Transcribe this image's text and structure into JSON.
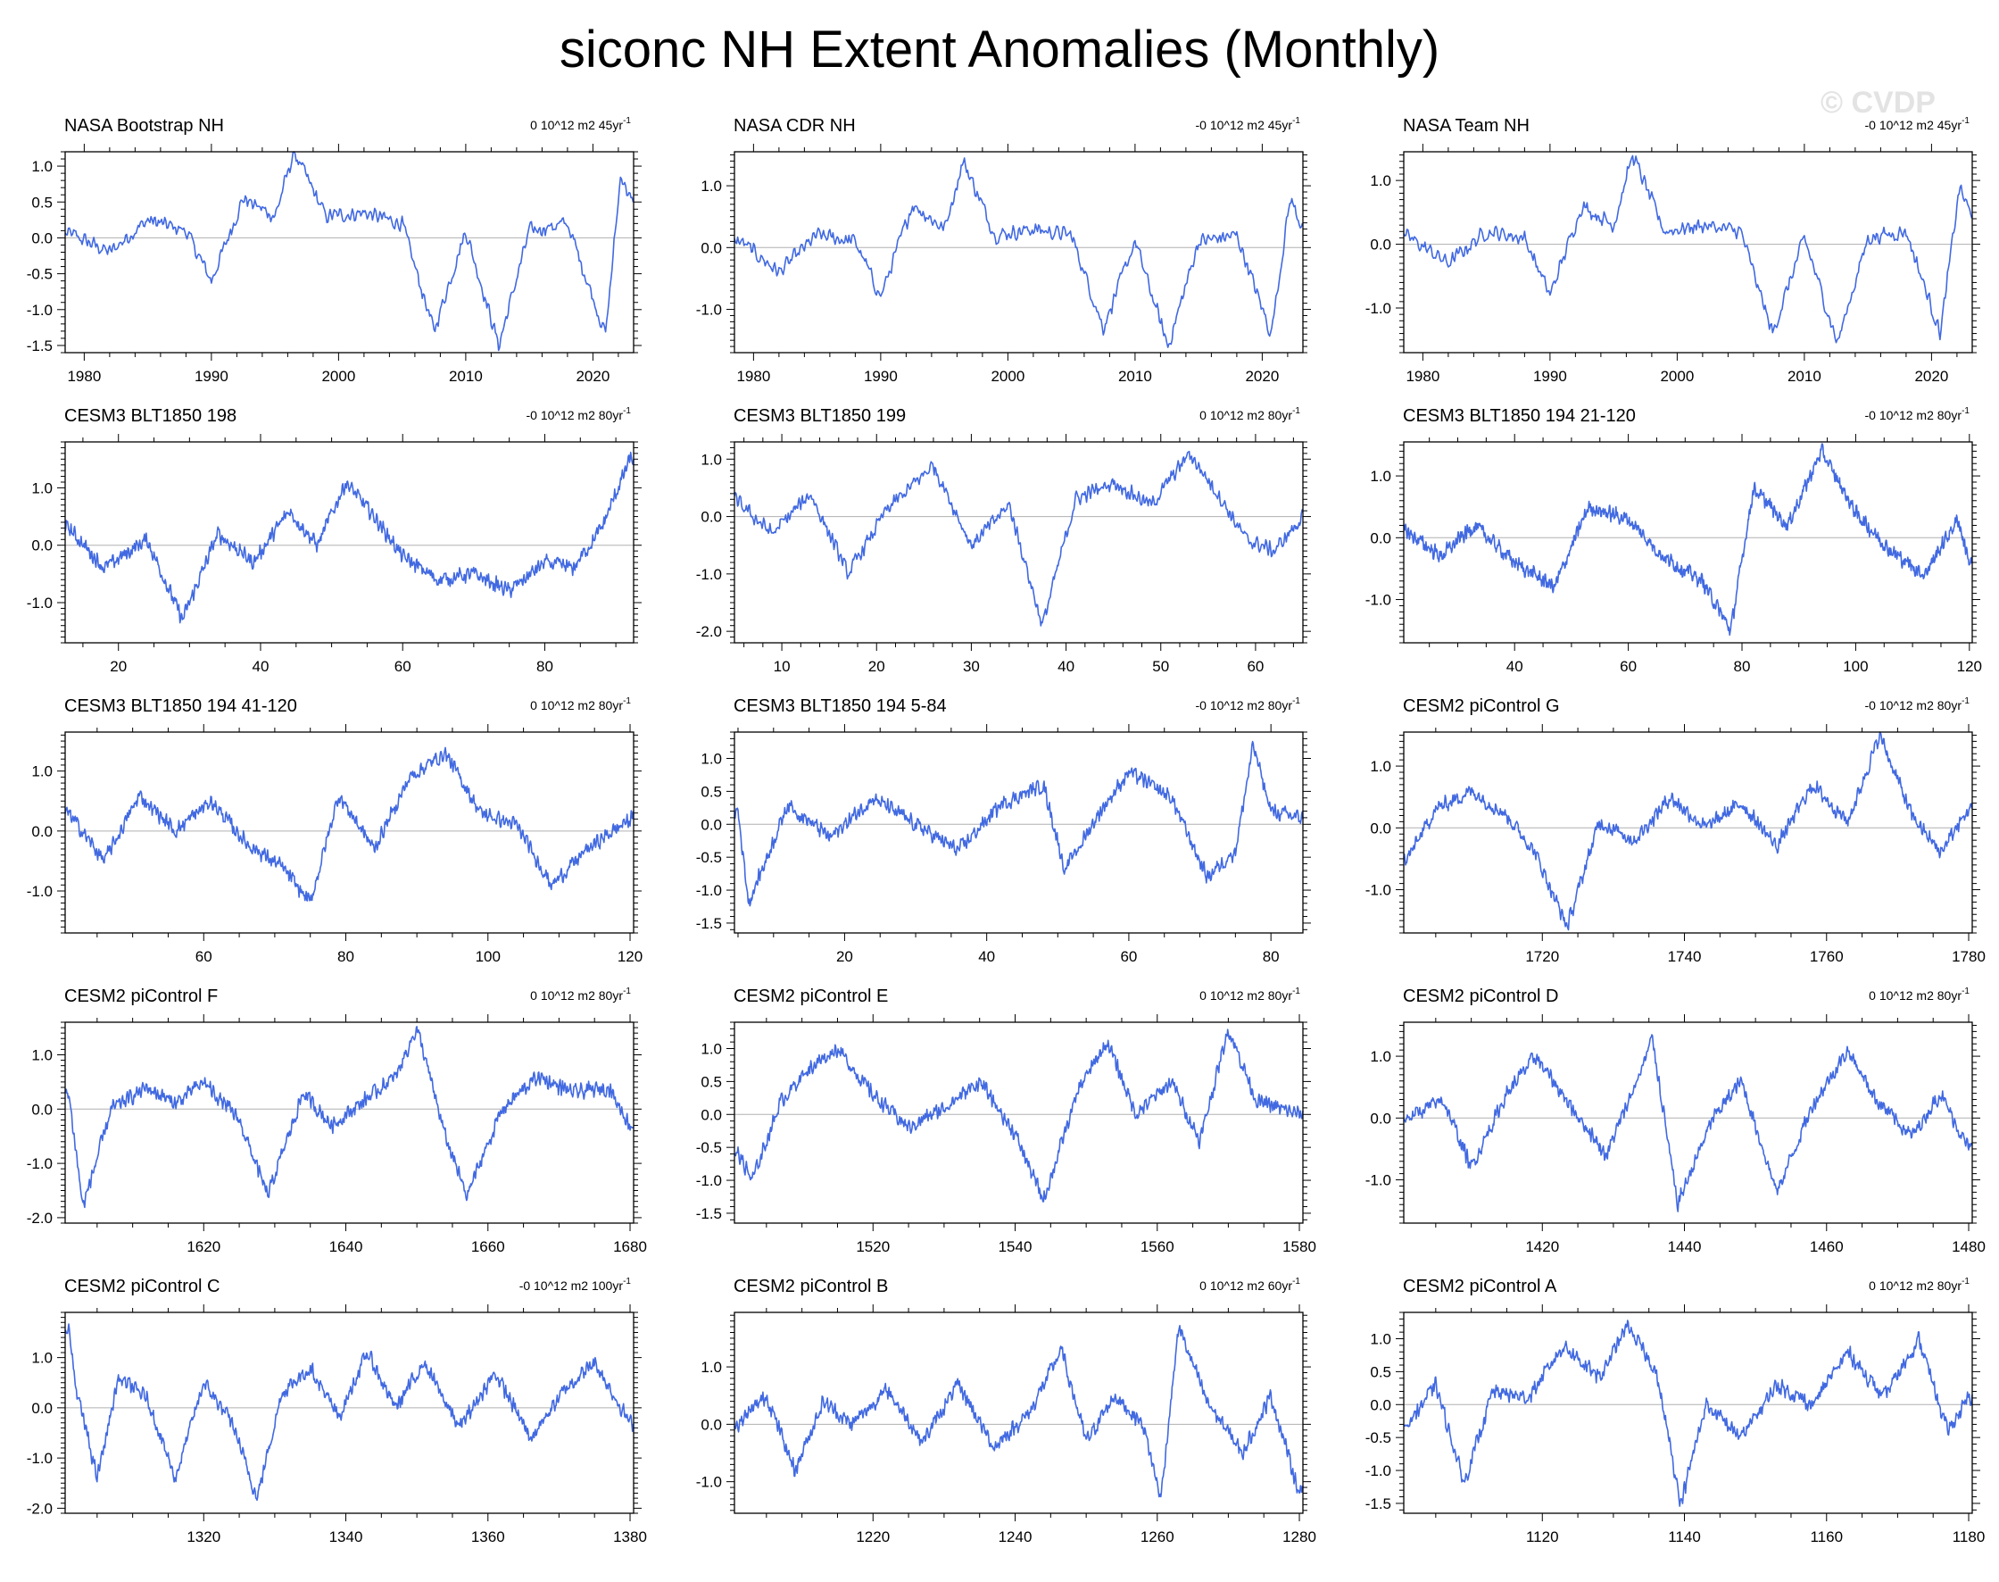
{
  "title": "siconc NH Extent Anomalies (Monthly)",
  "watermark": "© CVDP",
  "colors": {
    "line": "#4169e1",
    "zero": "#b0b0b0",
    "frame": "#000000"
  },
  "chart_data": [
    {
      "type": "line",
      "title": "NASA Bootstrap NH",
      "trend": "0 10^12 m2 45yr",
      "trend_sup": "-1",
      "xlim": [
        1978.5,
        2023.2
      ],
      "ylim": [
        -1.6,
        1.2
      ],
      "xticks": [
        1980,
        1990,
        2000,
        2010,
        2020
      ],
      "yticks": [
        -1.5,
        -1.0,
        -0.5,
        0.0,
        0.5,
        1.0
      ],
      "ytick_labels": [
        "-1.5",
        "-1.0",
        "-0.5",
        "0.0",
        "0.5",
        "1.0"
      ],
      "series": [
        {
          "x": [
            1979,
            1982,
            1985,
            1988,
            1990,
            1992.5,
            1995,
            1996.5,
            1999,
            2002,
            2005,
            2007.5,
            2010,
            2012.6,
            2015,
            2018,
            2021,
            2022.2,
            2023
          ],
          "y": [
            0.05,
            -0.2,
            0.25,
            0.1,
            -0.6,
            0.55,
            0.3,
            1.2,
            0.3,
            0.35,
            0.2,
            -1.3,
            0.1,
            -1.5,
            0.1,
            0.2,
            -1.35,
            0.9,
            0.5
          ]
        }
      ]
    },
    {
      "type": "line",
      "title": "NASA CDR NH",
      "trend": "-0 10^12 m2 45yr",
      "trend_sup": "-1",
      "xlim": [
        1978.5,
        2023.2
      ],
      "ylim": [
        -1.7,
        1.55
      ],
      "xticks": [
        1980,
        1990,
        2000,
        2010,
        2020
      ],
      "yticks": [
        -1.0,
        0.0,
        1.0
      ],
      "ytick_labels": [
        "-1.0",
        "0.0",
        "1.0"
      ],
      "series": [
        {
          "x": [
            1979,
            1982,
            1985,
            1988,
            1990,
            1992.5,
            1995,
            1996.5,
            1999,
            2002,
            2005,
            2007.5,
            2010,
            2012.6,
            2015,
            2018,
            2020.7,
            2022.2,
            2023
          ],
          "y": [
            0.1,
            -0.4,
            0.2,
            0.1,
            -0.8,
            0.7,
            0.3,
            1.4,
            0.2,
            0.3,
            0.2,
            -1.3,
            0.1,
            -1.6,
            0.1,
            0.2,
            -1.4,
            0.8,
            0.4
          ]
        }
      ]
    },
    {
      "type": "line",
      "title": "NASA Team NH",
      "trend": "-0 10^12 m2 45yr",
      "trend_sup": "-1",
      "xlim": [
        1978.5,
        2023.2
      ],
      "ylim": [
        -1.7,
        1.45
      ],
      "xticks": [
        1980,
        1990,
        2000,
        2010,
        2020
      ],
      "yticks": [
        -1.0,
        0.0,
        1.0
      ],
      "ytick_labels": [
        "-1.0",
        "0.0",
        "1.0"
      ],
      "series": [
        {
          "x": [
            1979,
            1982,
            1985,
            1988,
            1990,
            1992.5,
            1995,
            1996.5,
            1999,
            2002,
            2005,
            2007.5,
            2010,
            2012.6,
            2015,
            2018,
            2020.7,
            2022.2,
            2023
          ],
          "y": [
            0.1,
            -0.3,
            0.2,
            0.1,
            -0.8,
            0.6,
            0.3,
            1.4,
            0.2,
            0.3,
            0.2,
            -1.4,
            0.1,
            -1.55,
            0.1,
            0.2,
            -1.4,
            0.9,
            0.5
          ]
        }
      ]
    },
    {
      "type": "line",
      "title": "CESM3 BLT1850 198",
      "trend": "-0 10^12 m2 80yr",
      "trend_sup": "-1",
      "xlim": [
        12.5,
        92.5
      ],
      "ylim": [
        -1.7,
        1.8
      ],
      "xticks": [
        20,
        40,
        60,
        80
      ],
      "yticks": [
        -1.0,
        0.0,
        1.0
      ],
      "ytick_labels": [
        "-1.0",
        "0.0",
        "1.0"
      ],
      "series": [
        {
          "x": [
            13,
            18,
            24,
            29,
            34,
            39,
            44,
            48,
            52,
            56,
            60,
            65,
            70,
            75,
            80,
            84,
            88,
            92
          ],
          "y": [
            0.3,
            -0.4,
            0.1,
            -1.3,
            0.2,
            -0.3,
            0.6,
            0.0,
            1.1,
            0.5,
            -0.2,
            -0.6,
            -0.5,
            -0.8,
            -0.3,
            -0.4,
            0.3,
            1.5
          ]
        }
      ]
    },
    {
      "type": "line",
      "title": "CESM3 BLT1850 199",
      "trend": "0 10^12 m2 80yr",
      "trend_sup": "-1",
      "xlim": [
        5,
        65
      ],
      "ylim": [
        -2.2,
        1.3
      ],
      "xticks": [
        10,
        20,
        30,
        40,
        50,
        60
      ],
      "yticks": [
        -2.0,
        -1.0,
        0.0,
        1.0
      ],
      "ytick_labels": [
        "-2.0",
        "-1.0",
        "0.0",
        "1.0"
      ],
      "series": [
        {
          "x": [
            5,
            9,
            13,
            17,
            21,
            26,
            30,
            34,
            37.5,
            41,
            45,
            49,
            53,
            56,
            59,
            62,
            65
          ],
          "y": [
            0.3,
            -0.3,
            0.4,
            -1.0,
            0.1,
            0.9,
            -0.5,
            0.2,
            -1.9,
            0.3,
            0.6,
            0.2,
            1.1,
            0.4,
            -0.4,
            -0.6,
            0.0
          ]
        }
      ]
    },
    {
      "type": "line",
      "title": "CESM3 BLT1850 194 21-120",
      "trend": "-0 10^12 m2 80yr",
      "trend_sup": "-1",
      "xlim": [
        20.5,
        120.5
      ],
      "ylim": [
        -1.7,
        1.55
      ],
      "xticks": [
        40,
        60,
        80,
        100,
        120
      ],
      "yticks": [
        -1.0,
        0.0,
        1.0
      ],
      "ytick_labels": [
        "-1.0",
        "0.0",
        "1.0"
      ],
      "series": [
        {
          "x": [
            21,
            27,
            33,
            40,
            47,
            53,
            60,
            66,
            73,
            78,
            82,
            88,
            94,
            100,
            106,
            112,
            118,
            120
          ],
          "y": [
            0.1,
            -0.3,
            0.2,
            -0.4,
            -0.8,
            0.5,
            0.3,
            -0.3,
            -0.7,
            -1.5,
            0.8,
            0.2,
            1.4,
            0.4,
            -0.2,
            -0.6,
            0.3,
            -0.4
          ]
        }
      ]
    },
    {
      "type": "line",
      "title": "CESM3 BLT1850 194 41-120",
      "trend": "0 10^12 m2 80yr",
      "trend_sup": "-1",
      "xlim": [
        40.5,
        120.5
      ],
      "ylim": [
        -1.7,
        1.65
      ],
      "xticks": [
        60,
        80,
        100,
        120
      ],
      "yticks": [
        -1.0,
        0.0,
        1.0
      ],
      "ytick_labels": [
        "-1.0",
        "0.0",
        "1.0"
      ],
      "series": [
        {
          "x": [
            41,
            46,
            51,
            56,
            61,
            66,
            71,
            75,
            79,
            84,
            89,
            94,
            99,
            104,
            109,
            114,
            120
          ],
          "y": [
            0.3,
            -0.5,
            0.6,
            0.0,
            0.5,
            -0.2,
            -0.6,
            -1.2,
            0.6,
            -0.3,
            0.9,
            1.3,
            0.3,
            0.1,
            -0.9,
            -0.3,
            0.2
          ]
        }
      ]
    },
    {
      "type": "line",
      "title": "CESM3 BLT1850 194 5-84",
      "trend": "-0 10^12 m2 80yr",
      "trend_sup": "-1",
      "xlim": [
        4.5,
        84.5
      ],
      "ylim": [
        -1.65,
        1.4
      ],
      "xticks": [
        20,
        40,
        60,
        80
      ],
      "yticks": [
        -1.5,
        -1.0,
        -0.5,
        0.0,
        0.5,
        1.0
      ],
      "ytick_labels": [
        "-1.5",
        "-1.0",
        "-0.5",
        "0.0",
        "0.5",
        "1.0"
      ],
      "series": [
        {
          "x": [
            5,
            6.5,
            12,
            18,
            24,
            30,
            36,
            42,
            48,
            51,
            56,
            60,
            66,
            71,
            75,
            77.5,
            80,
            84
          ],
          "y": [
            0.2,
            -1.2,
            0.3,
            -0.2,
            0.4,
            0.0,
            -0.4,
            0.3,
            0.6,
            -0.7,
            0.2,
            0.8,
            0.4,
            -0.8,
            -0.4,
            1.2,
            0.2,
            0.1
          ]
        }
      ]
    },
    {
      "type": "line",
      "title": "CESM2 piControl G",
      "trend": "-0 10^12 m2 80yr",
      "trend_sup": "-1",
      "xlim": [
        1700.5,
        1780.5
      ],
      "ylim": [
        -1.7,
        1.55
      ],
      "xticks": [
        1720,
        1740,
        1760,
        1780
      ],
      "yticks": [
        -1.0,
        0.0,
        1.0
      ],
      "ytick_labels": [
        "-1.0",
        "0.0",
        "1.0"
      ],
      "series": [
        {
          "x": [
            1701,
            1705,
            1710,
            1715,
            1719,
            1723.5,
            1728,
            1733,
            1738,
            1743,
            1748,
            1753,
            1758,
            1763,
            1767.5,
            1772,
            1776,
            1780
          ],
          "y": [
            -0.5,
            0.3,
            0.6,
            0.2,
            -0.4,
            -1.6,
            0.1,
            -0.2,
            0.5,
            0.0,
            0.4,
            -0.3,
            0.7,
            0.1,
            1.5,
            0.2,
            -0.4,
            0.3
          ]
        }
      ]
    },
    {
      "type": "line",
      "title": "CESM2 piControl F",
      "trend": "0 10^12 m2 80yr",
      "trend_sup": "-1",
      "xlim": [
        1600.5,
        1680.5
      ],
      "ylim": [
        -2.1,
        1.6
      ],
      "xticks": [
        1620,
        1640,
        1660,
        1680
      ],
      "yticks": [
        -2.0,
        -1.0,
        0.0,
        1.0
      ],
      "ytick_labels": [
        "-2.0",
        "-1.0",
        "0.0",
        "1.0"
      ],
      "series": [
        {
          "x": [
            1601,
            1603,
            1607,
            1612,
            1616,
            1620,
            1625,
            1629,
            1634,
            1638,
            1643,
            1647,
            1650,
            1654,
            1657,
            1662,
            1667,
            1672,
            1677,
            1680
          ],
          "y": [
            0.3,
            -1.8,
            0.0,
            0.4,
            0.1,
            0.5,
            -0.2,
            -1.6,
            0.3,
            -0.3,
            0.2,
            0.6,
            1.5,
            -0.5,
            -1.6,
            0.0,
            0.6,
            0.3,
            0.4,
            -0.3
          ]
        }
      ]
    },
    {
      "type": "line",
      "title": "CESM2 piControl E",
      "trend": "0 10^12 m2 80yr",
      "trend_sup": "-1",
      "xlim": [
        1500.5,
        1580.5
      ],
      "ylim": [
        -1.65,
        1.4
      ],
      "xticks": [
        1520,
        1540,
        1560,
        1580
      ],
      "yticks": [
        -1.5,
        -1.0,
        -0.5,
        0.0,
        0.5,
        1.0
      ],
      "ytick_labels": [
        "-1.5",
        "-1.0",
        "-0.5",
        "0.0",
        "0.5",
        "1.0"
      ],
      "series": [
        {
          "x": [
            1501,
            1503,
            1507,
            1511,
            1515,
            1520,
            1525,
            1530,
            1535,
            1540,
            1544,
            1549,
            1553,
            1557,
            1562,
            1566,
            1570,
            1574,
            1580
          ],
          "y": [
            -0.6,
            -1.0,
            0.2,
            0.7,
            1.0,
            0.3,
            -0.2,
            0.1,
            0.5,
            -0.3,
            -1.3,
            0.4,
            1.1,
            0.0,
            0.5,
            -0.4,
            1.3,
            0.2,
            0.0
          ]
        }
      ]
    },
    {
      "type": "line",
      "title": "CESM2 piControl D",
      "trend": "0 10^12 m2 80yr",
      "trend_sup": "-1",
      "xlim": [
        1400.5,
        1480.5
      ],
      "ylim": [
        -1.7,
        1.55
      ],
      "xticks": [
        1420,
        1440,
        1460,
        1480
      ],
      "yticks": [
        -1.0,
        0.0,
        1.0
      ],
      "ytick_labels": [
        "-1.0",
        "0.0",
        "1.0"
      ],
      "series": [
        {
          "x": [
            1401,
            1406,
            1410,
            1415,
            1419,
            1424,
            1429,
            1434,
            1435.5,
            1439,
            1444,
            1448,
            1453,
            1458,
            1463,
            1467,
            1472,
            1476,
            1480
          ],
          "y": [
            0.0,
            0.3,
            -0.8,
            0.4,
            1.0,
            0.2,
            -0.6,
            0.8,
            1.3,
            -1.4,
            0.0,
            0.6,
            -1.2,
            0.2,
            1.1,
            0.3,
            -0.3,
            0.4,
            -0.5
          ]
        }
      ]
    },
    {
      "type": "line",
      "title": "CESM2 piControl C",
      "trend": "-0 10^12 m2 100yr",
      "trend_sup": "-1",
      "xlim": [
        1300.5,
        1380.5
      ],
      "ylim": [
        -2.1,
        1.9
      ],
      "xticks": [
        1320,
        1340,
        1360,
        1380
      ],
      "yticks": [
        -2.0,
        -1.0,
        0.0,
        1.0
      ],
      "ytick_labels": [
        "-2.0",
        "-1.0",
        "0.0",
        "1.0"
      ],
      "series": [
        {
          "x": [
            1301,
            1302,
            1305,
            1308,
            1312,
            1316,
            1320,
            1324,
            1327.5,
            1331,
            1335,
            1339,
            1343,
            1347,
            1351,
            1356,
            1361,
            1366,
            1371,
            1375,
            1380
          ],
          "y": [
            1.6,
            0.4,
            -1.4,
            0.6,
            0.2,
            -1.4,
            0.5,
            -0.3,
            -1.8,
            0.3,
            0.8,
            -0.2,
            1.1,
            0.0,
            0.9,
            -0.4,
            0.7,
            -0.6,
            0.4,
            0.9,
            -0.3
          ]
        }
      ]
    },
    {
      "type": "line",
      "title": "CESM2 piControl B",
      "trend": "0 10^12 m2 60yr",
      "trend_sup": "-1",
      "xlim": [
        1200.5,
        1280.5
      ],
      "ylim": [
        -1.55,
        1.95
      ],
      "xticks": [
        1220,
        1240,
        1260,
        1280
      ],
      "yticks": [
        -1.0,
        0.0,
        1.0
      ],
      "ytick_labels": [
        "-1.0",
        "0.0",
        "1.0"
      ],
      "series": [
        {
          "x": [
            1201,
            1205,
            1209,
            1213,
            1217,
            1222,
            1227,
            1232,
            1237,
            1242,
            1246.5,
            1250,
            1254,
            1258,
            1260.5,
            1263,
            1267,
            1272,
            1276,
            1280
          ],
          "y": [
            0.0,
            0.5,
            -0.8,
            0.4,
            0.0,
            0.6,
            -0.3,
            0.7,
            -0.4,
            0.2,
            1.3,
            -0.3,
            0.5,
            0.0,
            -1.3,
            1.7,
            0.4,
            -0.5,
            0.5,
            -1.2
          ]
        }
      ]
    },
    {
      "type": "line",
      "title": "CESM2 piControl A",
      "trend": "0 10^12 m2 80yr",
      "trend_sup": "-1",
      "xlim": [
        1100.5,
        1180.5
      ],
      "ylim": [
        -1.65,
        1.4
      ],
      "xticks": [
        1120,
        1140,
        1160,
        1180
      ],
      "yticks": [
        -1.5,
        -1.0,
        -0.5,
        0.0,
        0.5,
        1.0
      ],
      "ytick_labels": [
        "-1.5",
        "-1.0",
        "-0.5",
        "0.0",
        "0.5",
        "1.0"
      ],
      "series": [
        {
          "x": [
            1101,
            1105,
            1109,
            1113,
            1118,
            1123,
            1128,
            1132,
            1136,
            1139.5,
            1143,
            1148,
            1153,
            1158,
            1163,
            1168,
            1173,
            1177,
            1180
          ],
          "y": [
            -0.3,
            0.3,
            -1.2,
            0.2,
            0.1,
            0.9,
            0.4,
            1.2,
            0.5,
            -1.5,
            0.0,
            -0.5,
            0.3,
            0.0,
            0.8,
            0.1,
            1.0,
            -0.4,
            0.1
          ]
        }
      ]
    }
  ]
}
